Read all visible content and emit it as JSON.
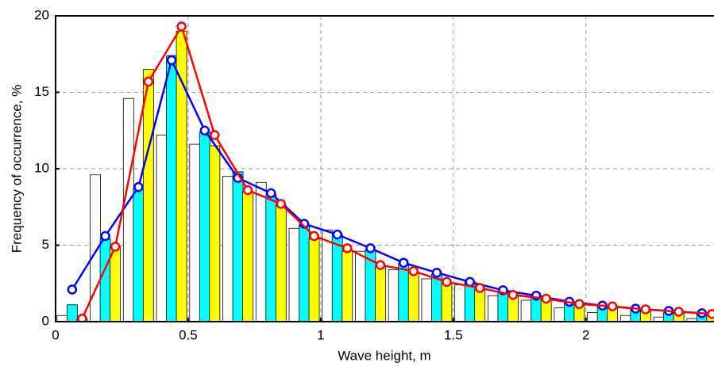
{
  "chart_data": {
    "type": "bar",
    "xlabel": "Wave height, m",
    "ylabel": "Frequency of occurrence, %",
    "xlim": [
      0,
      2.48
    ],
    "ylim": [
      0,
      20
    ],
    "xticks": [
      0,
      0.5,
      1,
      1.5,
      2
    ],
    "yticks": [
      0,
      5,
      10,
      15,
      20
    ],
    "grid": true,
    "series": [
      {
        "type": "bar",
        "color": "#ffffff",
        "x": [
          0.025,
          0.15,
          0.275,
          0.4,
          0.525,
          0.65,
          0.775,
          0.9,
          1.025,
          1.15,
          1.275,
          1.4,
          1.525,
          1.65,
          1.775,
          1.9,
          2.025,
          2.15,
          2.275,
          2.4
        ],
        "values": [
          0.4,
          9.6,
          14.6,
          12.2,
          11.6,
          9.5,
          9.1,
          6.1,
          6.0,
          4.6,
          3.4,
          2.8,
          2.4,
          1.7,
          1.4,
          0.9,
          0.6,
          0.4,
          0.3,
          0.2
        ]
      },
      {
        "type": "bar",
        "color": "#00ffff",
        "x": [
          0.0625,
          0.1875,
          0.3125,
          0.4375,
          0.5625,
          0.6875,
          0.8125,
          0.9375,
          1.0625,
          1.1875,
          1.3125,
          1.4375,
          1.5625,
          1.6875,
          1.8125,
          1.9375,
          2.0625,
          2.1875,
          2.3125,
          2.4375
        ],
        "values": [
          1.1,
          5.4,
          8.7,
          17.4,
          12.4,
          9.8,
          8.3,
          6.3,
          5.7,
          4.7,
          3.8,
          3.1,
          2.6,
          2.0,
          1.7,
          1.3,
          1.0,
          0.8,
          0.6,
          0.5
        ]
      },
      {
        "type": "bar",
        "color": "#ffff00",
        "x": [
          0.1,
          0.225,
          0.35,
          0.475,
          0.6,
          0.725,
          0.85,
          0.975,
          1.1,
          1.225,
          1.35,
          1.475,
          1.6,
          1.725,
          1.85,
          1.975,
          2.1,
          2.225,
          2.35,
          2.475
        ],
        "values": [
          0.2,
          4.9,
          16.5,
          19.0,
          11.5,
          8.5,
          7.6,
          5.4,
          4.6,
          3.6,
          3.2,
          2.5,
          2.1,
          1.7,
          1.4,
          1.1,
          0.9,
          0.7,
          0.6,
          0.4
        ]
      },
      {
        "type": "line",
        "color": "#0000ff",
        "x": [
          0.0625,
          0.1875,
          0.3125,
          0.4375,
          0.5625,
          0.6875,
          0.8125,
          0.9375,
          1.0625,
          1.1875,
          1.3125,
          1.4375,
          1.5625,
          1.6875,
          1.8125,
          1.9375,
          2.0625,
          2.1875,
          2.3125,
          2.4375
        ],
        "values": [
          2.1,
          5.6,
          8.8,
          17.1,
          12.5,
          9.4,
          8.4,
          6.4,
          5.7,
          4.8,
          3.85,
          3.2,
          2.6,
          2.05,
          1.7,
          1.3,
          1.05,
          0.85,
          0.7,
          0.55
        ]
      },
      {
        "type": "line",
        "color": "#ff0000",
        "x": [
          0.1,
          0.225,
          0.35,
          0.475,
          0.6,
          0.725,
          0.85,
          0.975,
          1.1,
          1.225,
          1.35,
          1.475,
          1.6,
          1.725,
          1.85,
          1.975,
          2.1,
          2.225,
          2.35,
          2.475
        ],
        "values": [
          0.2,
          4.9,
          15.7,
          19.3,
          12.2,
          8.6,
          7.7,
          5.6,
          4.8,
          3.7,
          3.3,
          2.6,
          2.2,
          1.75,
          1.5,
          1.15,
          1.0,
          0.8,
          0.65,
          0.5
        ]
      }
    ]
  }
}
